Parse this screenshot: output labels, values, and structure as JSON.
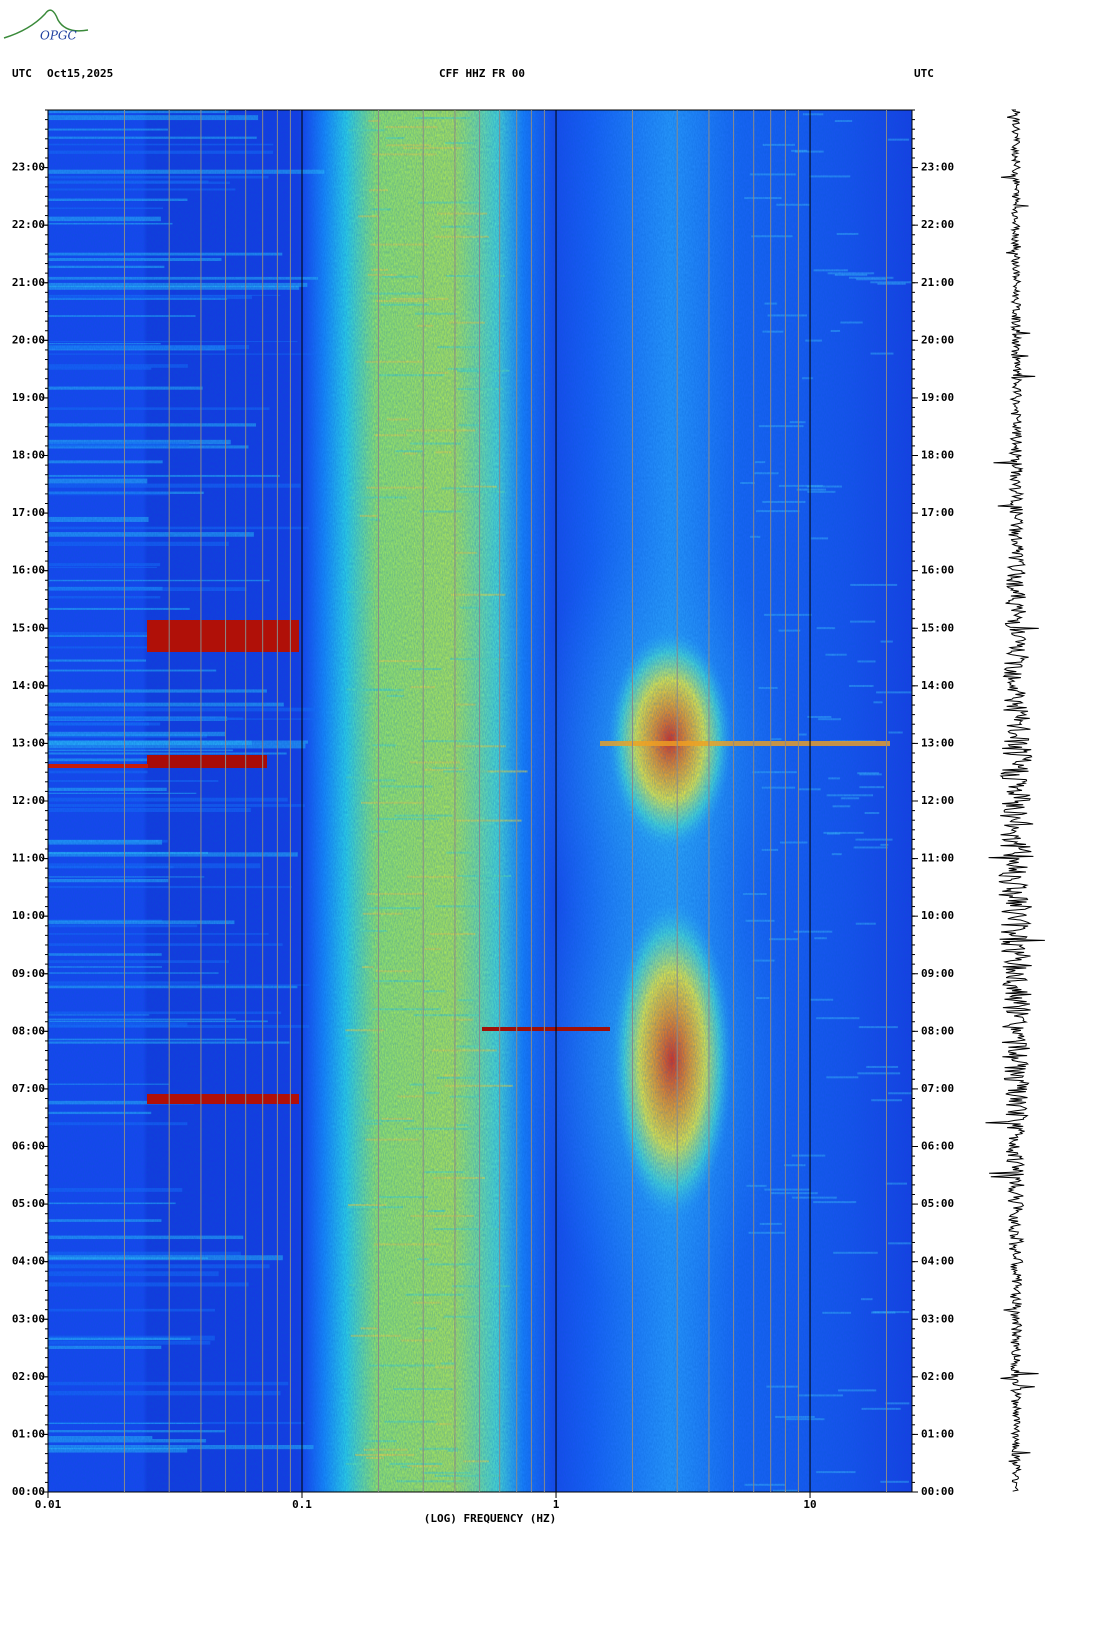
{
  "chart_data": {
    "type": "spectrogram",
    "logo": "OPGC",
    "left_header": [
      "UTC",
      "Oct15,2025"
    ],
    "title": "CFF HHZ FR 00",
    "right_header": "UTC",
    "x_label": "(LOG) FREQUENCY (HZ)",
    "xscale": "log",
    "xlim": [
      0.01,
      25.2
    ],
    "xticks": [
      0.01,
      0.1,
      1,
      10
    ],
    "ylim": [
      0,
      24
    ],
    "yticks": [
      {
        "value": 0,
        "label": "00:00"
      },
      {
        "value": 1,
        "label": "01:00"
      },
      {
        "value": 2,
        "label": "02:00"
      },
      {
        "value": 3,
        "label": "03:00"
      },
      {
        "value": 4,
        "label": "04:00"
      },
      {
        "value": 5,
        "label": "05:00"
      },
      {
        "value": 6,
        "label": "06:00"
      },
      {
        "value": 7,
        "label": "07:00"
      },
      {
        "value": 8,
        "label": "08:00"
      },
      {
        "value": 9,
        "label": "09:00"
      },
      {
        "value": 10,
        "label": "10:00"
      },
      {
        "value": 11,
        "label": "11:00"
      },
      {
        "value": 12,
        "label": "12:00"
      },
      {
        "value": 13,
        "label": "13:00"
      },
      {
        "value": 14,
        "label": "14:00"
      },
      {
        "value": 15,
        "label": "15:00"
      },
      {
        "value": 16,
        "label": "16:00"
      },
      {
        "value": 17,
        "label": "17:00"
      },
      {
        "value": 18,
        "label": "18:00"
      },
      {
        "value": 19,
        "label": "19:00"
      },
      {
        "value": 20,
        "label": "20:00"
      },
      {
        "value": 21,
        "label": "21:00"
      },
      {
        "value": 22,
        "label": "22:00"
      },
      {
        "value": 23,
        "label": "23:00"
      }
    ]
  }
}
